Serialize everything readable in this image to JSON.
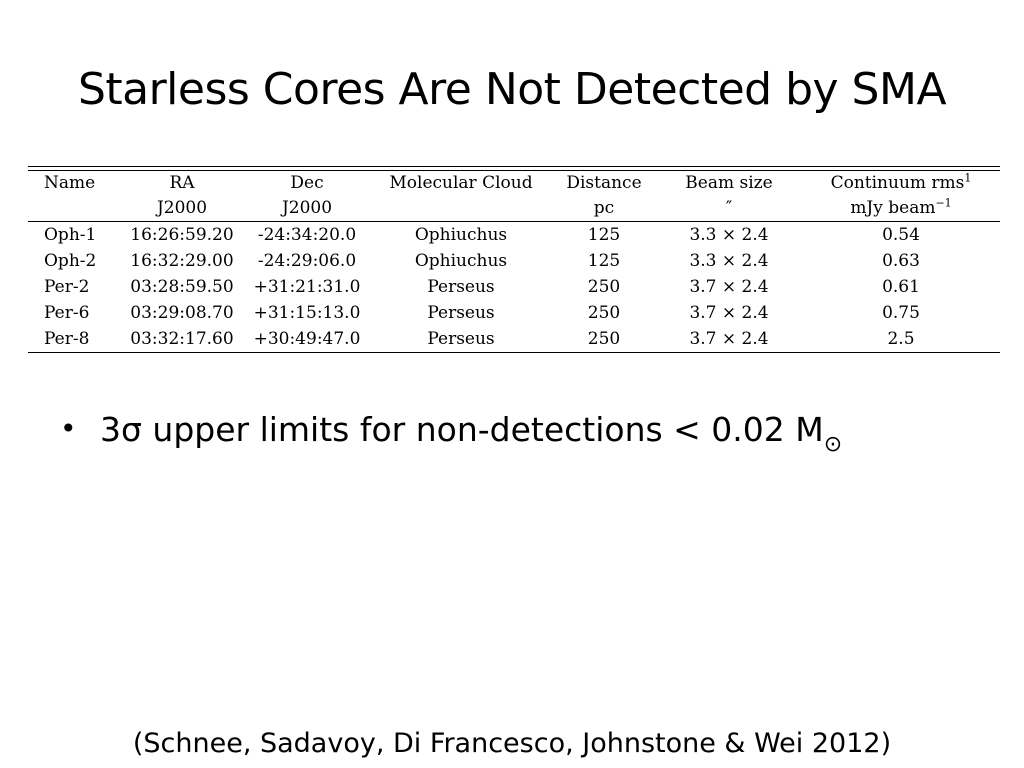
{
  "slide": {
    "title": "Starless Cores Are Not Detected by SMA",
    "bullet_marker": "•",
    "bullet_text": "3σ upper limits for non-detections < 0.02 M",
    "bullet_subscript": "⊙",
    "citation": "(Schnee, Sadavoy, Di Francesco, Johnstone & Wei 2012)"
  },
  "table": {
    "header": {
      "name": "Name",
      "ra": "RA",
      "ra_unit": "J2000",
      "dec": "Dec",
      "dec_unit": "J2000",
      "cloud": "Molecular Cloud",
      "distance": "Distance",
      "distance_unit": "pc",
      "beam": "Beam size",
      "beam_unit": "″",
      "rms": "Continuum rms",
      "rms_sup": "1",
      "rms_unit": "mJy beam",
      "rms_unit_sup": "−1"
    },
    "rows": [
      {
        "name": "Oph-1",
        "ra": "16:26:59.20",
        "dec": "-24:34:20.0",
        "cloud": "Ophiuchus",
        "distance": "125",
        "beam": "3.3 × 2.4",
        "rms": "0.54"
      },
      {
        "name": "Oph-2",
        "ra": "16:32:29.00",
        "dec": "-24:29:06.0",
        "cloud": "Ophiuchus",
        "distance": "125",
        "beam": "3.3 × 2.4",
        "rms": "0.63"
      },
      {
        "name": "Per-2",
        "ra": "03:28:59.50",
        "dec": "+31:21:31.0",
        "cloud": "Perseus",
        "distance": "250",
        "beam": "3.7 × 2.4",
        "rms": "0.61"
      },
      {
        "name": "Per-6",
        "ra": "03:29:08.70",
        "dec": "+31:15:13.0",
        "cloud": "Perseus",
        "distance": "250",
        "beam": "3.7 × 2.4",
        "rms": "0.75"
      },
      {
        "name": "Per-8",
        "ra": "03:32:17.60",
        "dec": "+30:49:47.0",
        "cloud": "Perseus",
        "distance": "250",
        "beam": "3.7 × 2.4",
        "rms": "2.5"
      }
    ]
  }
}
